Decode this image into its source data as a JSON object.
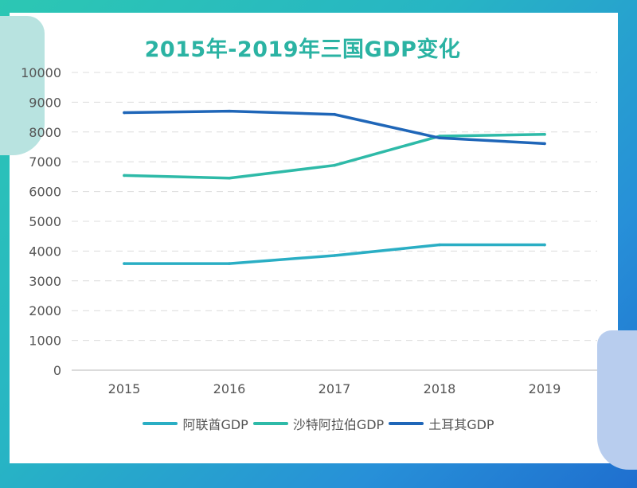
{
  "chart_data": {
    "type": "line",
    "title": "2015年-2019年三国GDP变化",
    "categories": [
      "2015",
      "2016",
      "2017",
      "2018",
      "2019"
    ],
    "ylim": [
      0,
      10000
    ],
    "yticks": [
      0,
      1000,
      2000,
      3000,
      4000,
      5000,
      6000,
      7000,
      8000,
      9000,
      10000
    ],
    "grid": true,
    "legend_position": "bottom",
    "series": [
      {
        "name": "阿联酋GDP",
        "color": "#2aaec4",
        "values": [
          3580,
          3580,
          3850,
          4210,
          4210
        ]
      },
      {
        "name": "沙特阿拉伯GDP",
        "color": "#2ebaa8",
        "values": [
          6540,
          6450,
          6880,
          7860,
          7920
        ]
      },
      {
        "name": "土耳其GDP",
        "color": "#1f66b8",
        "values": [
          8650,
          8700,
          8590,
          7800,
          7610
        ]
      }
    ]
  }
}
